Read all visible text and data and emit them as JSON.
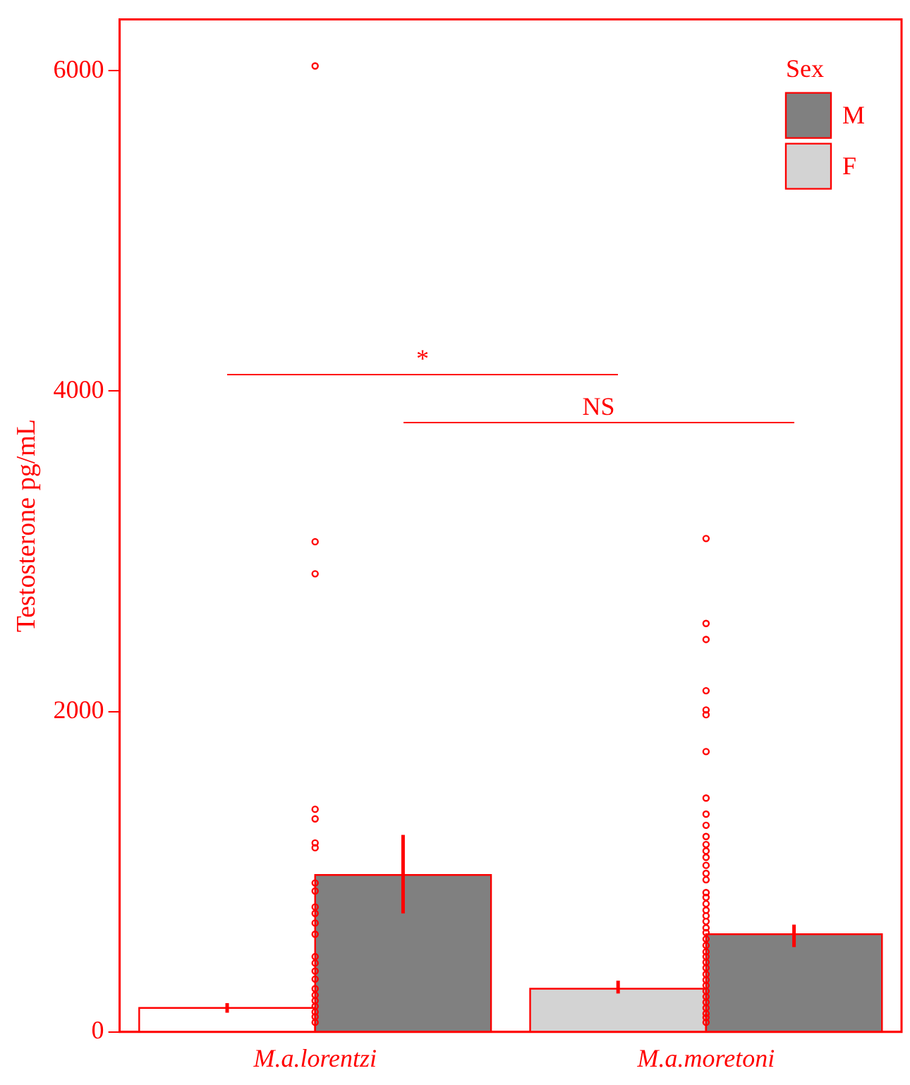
{
  "chart_data": {
    "type": "bar",
    "ylabel": "Testosterone pg/mL",
    "legend_title": "Sex",
    "legend": "top right",
    "grid": false,
    "categories": [
      "M.a.lorentzi",
      "M.a.moretoni"
    ],
    "ylim": [
      0,
      6320
    ],
    "yticks": [
      0,
      2000,
      4000,
      6000
    ],
    "series": [
      {
        "name": "F",
        "colors": [
          "#ffffff",
          "#d3d3d3"
        ],
        "color": "#d3d3d3",
        "values": [
          150,
          270
        ],
        "errors": [
          [
            120,
            180
          ],
          [
            240,
            320
          ]
        ]
      },
      {
        "name": "M",
        "color": "#808080",
        "values": [
          980,
          610
        ],
        "errors": [
          [
            740,
            1230
          ],
          [
            530,
            670
          ]
        ]
      },
      {
        "type": "scatter",
        "color": "#ff0000",
        "marker": "circle",
        "x": [
          "M.a.lorentzi",
          "M.a.lorentzi",
          "M.a.lorentzi",
          "M.a.lorentzi",
          "M.a.lorentzi",
          "M.a.lorentzi",
          "M.a.moretoni",
          "M.a.moretoni",
          "M.a.moretoni",
          "M.a.moretoni",
          "M.a.moretoni",
          "M.a.moretoni",
          "M.a.moretoni",
          "M.a.moretoni",
          "M.a.moretoni",
          "M.a.moretoni",
          "M.a.moretoni",
          "M.a.moretoni",
          "M.a.moretoni",
          "M.a.moretoni"
        ],
        "values": [
          610,
          230,
          195,
          160,
          125,
          95,
          1170,
          840,
          760,
          725,
          620,
          540,
          500,
          400,
          325,
          290,
          255,
          185,
          115,
          60
        ]
      },
      {
        "type": "scatter",
        "color": "#ff0000",
        "marker": "circle",
        "x": [
          "M.a.lorentzi",
          "M.a.lorentzi",
          "M.a.lorentzi",
          "M.a.lorentzi",
          "M.a.lorentzi",
          "M.a.lorentzi",
          "M.a.lorentzi",
          "M.a.lorentzi",
          "M.a.lorentzi",
          "M.a.lorentzi",
          "M.a.lorentzi",
          "M.a.lorentzi",
          "M.a.lorentzi",
          "M.a.lorentzi",
          "M.a.lorentzi",
          "M.a.lorentzi",
          "M.a.lorentzi",
          "M.a.lorentzi",
          "M.a.moretoni",
          "M.a.moretoni",
          "M.a.moretoni",
          "M.a.moretoni",
          "M.a.moretoni",
          "M.a.moretoni",
          "M.a.moretoni",
          "M.a.moretoni",
          "M.a.moretoni",
          "M.a.moretoni",
          "M.a.moretoni",
          "M.a.moretoni",
          "M.a.moretoni",
          "M.a.moretoni",
          "M.a.moretoni",
          "M.a.moretoni",
          "M.a.moretoni",
          "M.a.moretoni",
          "M.a.moretoni",
          "M.a.moretoni",
          "M.a.moretoni",
          "M.a.moretoni",
          "M.a.moretoni",
          "M.a.moretoni",
          "M.a.moretoni",
          "M.a.moretoni",
          "M.a.moretoni"
        ],
        "values": [
          6030,
          3060,
          2860,
          1390,
          1330,
          1180,
          1150,
          930,
          880,
          780,
          740,
          680,
          470,
          430,
          380,
          330,
          270,
          60,
          3080,
          2550,
          2450,
          2130,
          2010,
          1980,
          1750,
          1460,
          1360,
          1290,
          1220,
          1130,
          1090,
          1040,
          990,
          950,
          870,
          800,
          690,
          650,
          580,
          470,
          435,
          360,
          220,
          150,
          90
        ]
      }
    ],
    "annotations": [
      "*",
      "NS"
    ]
  }
}
